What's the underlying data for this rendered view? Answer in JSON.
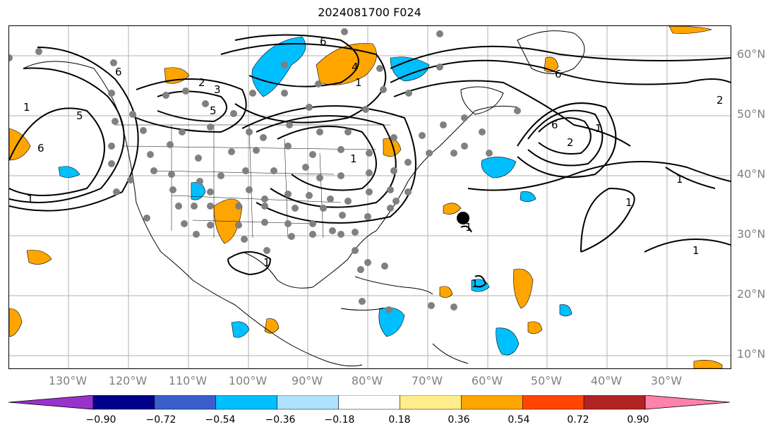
{
  "title": "2024081700 F024",
  "lat_labels": [
    "60°N",
    "50°N",
    "40°N",
    "30°N",
    "20°N",
    "10°N"
  ],
  "lon_labels": [
    "130°W",
    "120°W",
    "110°W",
    "100°W",
    "90°W",
    "80°W",
    "70°W",
    "60°W",
    "50°W",
    "40°W",
    "30°W"
  ],
  "contour_labels": [
    "6",
    "2",
    "3",
    "5",
    "1",
    "6",
    "4",
    "1",
    "2",
    "6",
    "1",
    "5",
    "6",
    "1",
    "1",
    "1",
    "1",
    "6",
    "1",
    "1",
    "2",
    "1",
    "1"
  ],
  "colorbar": {
    "ticks": [
      "−0.90",
      "−0.72",
      "−0.54",
      "−0.36",
      "−0.18",
      "0.18",
      "0.36",
      "0.54",
      "0.72",
      "0.90"
    ],
    "colors": [
      "#9932cc",
      "#00008b",
      "#3a5fcd",
      "#00bfff",
      "#b0e2ff",
      "#ffffff",
      "#ffec8b",
      "#ffa500",
      "#ff4500",
      "#b22222",
      "#ff82ab"
    ]
  },
  "storm_marker": "hurricane-symbol"
}
